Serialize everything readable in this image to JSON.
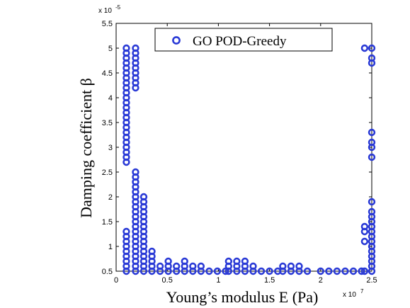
{
  "chart_data": {
    "type": "scatter",
    "title": "",
    "xlabel": "Young’s modulus E (Pa)",
    "ylabel": "Damping coefficient β",
    "x_exponent_label": "x 10",
    "x_exponent_power": "7",
    "y_exponent_label": "x 10",
    "y_exponent_power": "-5",
    "xlim": [
      0,
      2.5
    ],
    "ylim": [
      0.5,
      5.5
    ],
    "x_ticks": [
      "0",
      "0.5",
      "1",
      "1.5",
      "2",
      "2.5"
    ],
    "y_ticks": [
      "0.5",
      "1",
      "1.5",
      "2",
      "2.5",
      "3",
      "3.5",
      "4",
      "4.5",
      "5",
      "5.5"
    ],
    "grid": false,
    "legend_position": "top-center",
    "marker_color": "#2a3ad6",
    "series": [
      {
        "name": "GO POD-Greedy",
        "points": [
          [
            0.1,
            5.0
          ],
          [
            0.1,
            4.9
          ],
          [
            0.1,
            4.8
          ],
          [
            0.1,
            4.7
          ],
          [
            0.1,
            4.6
          ],
          [
            0.1,
            4.5
          ],
          [
            0.1,
            4.4
          ],
          [
            0.1,
            4.3
          ],
          [
            0.1,
            4.2
          ],
          [
            0.1,
            4.1
          ],
          [
            0.1,
            4.0
          ],
          [
            0.1,
            3.9
          ],
          [
            0.1,
            3.8
          ],
          [
            0.1,
            3.7
          ],
          [
            0.1,
            3.6
          ],
          [
            0.1,
            3.5
          ],
          [
            0.1,
            3.4
          ],
          [
            0.1,
            3.3
          ],
          [
            0.1,
            3.2
          ],
          [
            0.1,
            3.1
          ],
          [
            0.1,
            3.0
          ],
          [
            0.1,
            2.9
          ],
          [
            0.1,
            2.8
          ],
          [
            0.1,
            2.7
          ],
          [
            0.1,
            1.3
          ],
          [
            0.1,
            1.2
          ],
          [
            0.1,
            1.1
          ],
          [
            0.1,
            1.0
          ],
          [
            0.1,
            0.9
          ],
          [
            0.1,
            0.8
          ],
          [
            0.1,
            0.7
          ],
          [
            0.1,
            0.6
          ],
          [
            0.1,
            0.5
          ],
          [
            0.19,
            5.0
          ],
          [
            0.19,
            4.9
          ],
          [
            0.19,
            4.8
          ],
          [
            0.19,
            4.7
          ],
          [
            0.19,
            4.6
          ],
          [
            0.19,
            4.5
          ],
          [
            0.19,
            4.4
          ],
          [
            0.19,
            4.3
          ],
          [
            0.19,
            4.2
          ],
          [
            0.19,
            2.5
          ],
          [
            0.19,
            2.4
          ],
          [
            0.19,
            2.3
          ],
          [
            0.19,
            2.2
          ],
          [
            0.19,
            2.1
          ],
          [
            0.19,
            2.0
          ],
          [
            0.19,
            1.9
          ],
          [
            0.19,
            1.8
          ],
          [
            0.19,
            1.7
          ],
          [
            0.19,
            1.6
          ],
          [
            0.19,
            1.5
          ],
          [
            0.19,
            1.4
          ],
          [
            0.19,
            1.3
          ],
          [
            0.19,
            1.2
          ],
          [
            0.19,
            1.1
          ],
          [
            0.19,
            1.0
          ],
          [
            0.19,
            0.9
          ],
          [
            0.19,
            0.8
          ],
          [
            0.19,
            0.7
          ],
          [
            0.19,
            0.6
          ],
          [
            0.19,
            0.5
          ],
          [
            0.27,
            2.0
          ],
          [
            0.27,
            1.9
          ],
          [
            0.27,
            1.8
          ],
          [
            0.27,
            1.7
          ],
          [
            0.27,
            1.6
          ],
          [
            0.27,
            1.5
          ],
          [
            0.27,
            1.4
          ],
          [
            0.27,
            1.3
          ],
          [
            0.27,
            1.2
          ],
          [
            0.27,
            1.1
          ],
          [
            0.27,
            1.0
          ],
          [
            0.27,
            0.9
          ],
          [
            0.27,
            0.8
          ],
          [
            0.27,
            0.7
          ],
          [
            0.27,
            0.6
          ],
          [
            0.27,
            0.5
          ],
          [
            0.35,
            0.9
          ],
          [
            0.35,
            0.8
          ],
          [
            0.35,
            0.7
          ],
          [
            0.35,
            0.6
          ],
          [
            0.35,
            0.5
          ],
          [
            0.43,
            0.6
          ],
          [
            0.43,
            0.5
          ],
          [
            0.51,
            0.7
          ],
          [
            0.51,
            0.6
          ],
          [
            0.51,
            0.5
          ],
          [
            0.59,
            0.6
          ],
          [
            0.59,
            0.5
          ],
          [
            0.67,
            0.7
          ],
          [
            0.67,
            0.6
          ],
          [
            0.67,
            0.5
          ],
          [
            0.75,
            0.6
          ],
          [
            0.75,
            0.5
          ],
          [
            0.83,
            0.6
          ],
          [
            0.83,
            0.5
          ],
          [
            0.91,
            0.5
          ],
          [
            0.99,
            0.5
          ],
          [
            1.07,
            0.5
          ],
          [
            1.1,
            0.7
          ],
          [
            1.1,
            0.6
          ],
          [
            1.1,
            0.5
          ],
          [
            1.18,
            0.7
          ],
          [
            1.18,
            0.6
          ],
          [
            1.18,
            0.5
          ],
          [
            1.26,
            0.7
          ],
          [
            1.26,
            0.6
          ],
          [
            1.26,
            0.5
          ],
          [
            1.34,
            0.6
          ],
          [
            1.34,
            0.5
          ],
          [
            1.42,
            0.5
          ],
          [
            1.5,
            0.5
          ],
          [
            1.58,
            0.5
          ],
          [
            1.63,
            0.6
          ],
          [
            1.63,
            0.5
          ],
          [
            1.71,
            0.6
          ],
          [
            1.71,
            0.5
          ],
          [
            1.79,
            0.6
          ],
          [
            1.79,
            0.5
          ],
          [
            1.87,
            0.5
          ],
          [
            2.0,
            0.5
          ],
          [
            2.08,
            0.5
          ],
          [
            2.16,
            0.5
          ],
          [
            2.24,
            0.5
          ],
          [
            2.32,
            0.5
          ],
          [
            2.4,
            0.5
          ],
          [
            2.43,
            5.0
          ],
          [
            2.43,
            1.4
          ],
          [
            2.43,
            1.3
          ],
          [
            2.43,
            1.1
          ],
          [
            2.43,
            0.5
          ],
          [
            2.5,
            5.0
          ],
          [
            2.5,
            4.8
          ],
          [
            2.5,
            4.7
          ],
          [
            2.5,
            3.3
          ],
          [
            2.5,
            3.1
          ],
          [
            2.5,
            3.0
          ],
          [
            2.5,
            2.8
          ],
          [
            2.5,
            1.9
          ],
          [
            2.5,
            1.7
          ],
          [
            2.5,
            1.6
          ],
          [
            2.5,
            1.5
          ],
          [
            2.5,
            1.4
          ],
          [
            2.5,
            1.3
          ],
          [
            2.5,
            1.2
          ],
          [
            2.5,
            1.1
          ],
          [
            2.5,
            1.0
          ],
          [
            2.5,
            0.9
          ],
          [
            2.5,
            0.8
          ],
          [
            2.5,
            0.7
          ],
          [
            2.5,
            0.6
          ],
          [
            2.5,
            0.5
          ]
        ]
      }
    ]
  }
}
